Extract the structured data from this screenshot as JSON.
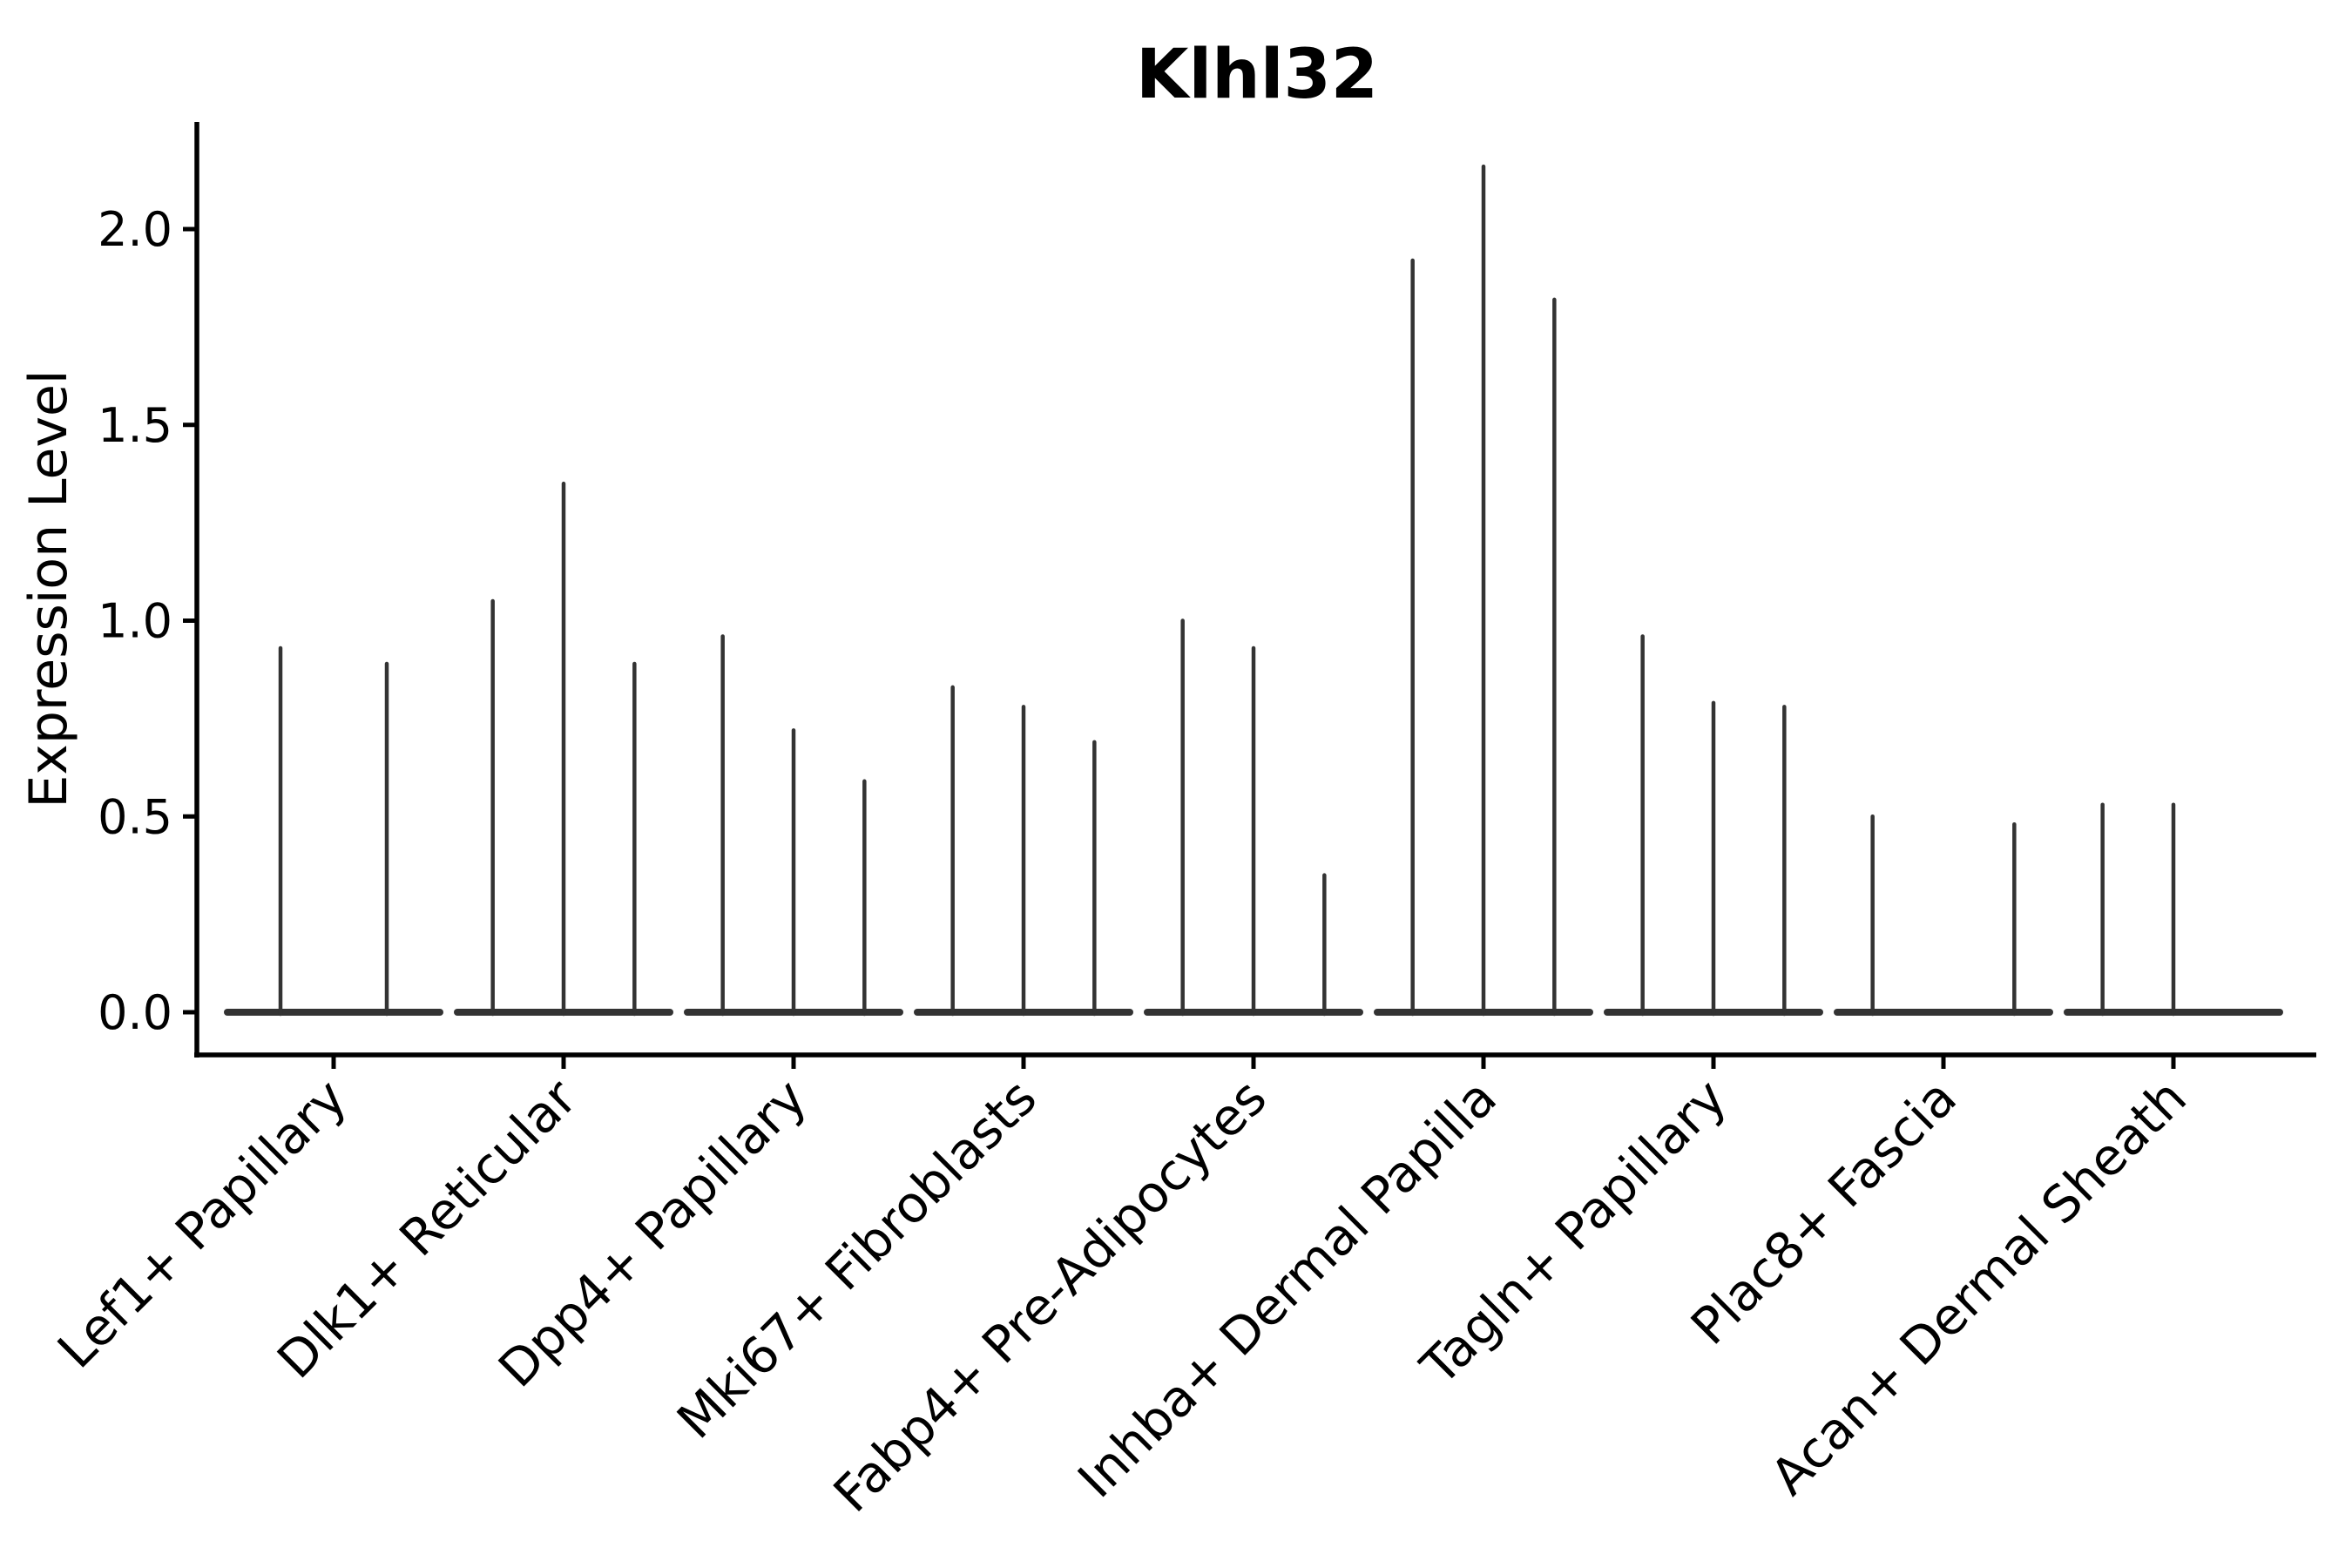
{
  "figure": {
    "title": "Klhl32"
  },
  "chart_data": {
    "type": "violin",
    "title": "Klhl32",
    "xlabel": "",
    "ylabel": "Expression Level",
    "grid": false,
    "legend": "none",
    "note": "Each cluster contains 2-3 extremely thin violins (spikes) rising from a flattened violin body at expression 0; a value of 0 means that violin is completely flat on the baseline.",
    "categories": [
      "Lef1+ Papillary",
      "Dlk1+ Reticular",
      "Dpp4+ Papillary",
      "Mki67+ Fibroblasts",
      "Fabp4+ Pre-Adipocytes",
      "Inhba+ Dermal Papilla",
      "Tagln+ Papillary",
      "Plac8+ Fascia",
      "Acan+ Dermal Sheath"
    ],
    "series": [
      {
        "name": "Lef1+ Papillary",
        "violin_maxima": [
          0.93,
          0.89
        ]
      },
      {
        "name": "Dlk1+ Reticular",
        "violin_maxima": [
          1.05,
          1.35,
          0.89
        ]
      },
      {
        "name": "Dpp4+ Papillary",
        "violin_maxima": [
          0.96,
          0.72,
          0.59
        ]
      },
      {
        "name": "Mki67+ Fibroblasts",
        "violin_maxima": [
          0.83,
          0.78,
          0.69
        ]
      },
      {
        "name": "Fabp4+ Pre-Adipocytes",
        "violin_maxima": [
          1.0,
          0.93,
          0.35
        ]
      },
      {
        "name": "Inhba+ Dermal Papilla",
        "violin_maxima": [
          1.92,
          2.16,
          1.82
        ]
      },
      {
        "name": "Tagln+ Papillary",
        "violin_maxima": [
          0.96,
          0.79,
          0.78
        ]
      },
      {
        "name": "Plac8+ Fascia",
        "violin_maxima": [
          0.5,
          0,
          0.48
        ]
      },
      {
        "name": "Acan+ Dermal Sheath",
        "violin_maxima": [
          0.53,
          0.53,
          0
        ]
      }
    ],
    "yticks": [
      "0.0",
      "0.5",
      "1.0",
      "1.5",
      "2.0"
    ],
    "ytick_values": [
      0,
      0.5,
      1.0,
      1.5,
      2.0
    ],
    "ylim": [
      -0.11,
      2.27
    ],
    "colors": {
      "violin": "#333333",
      "axis": "#000000",
      "text": "#000000",
      "background": "#ffffff"
    }
  }
}
